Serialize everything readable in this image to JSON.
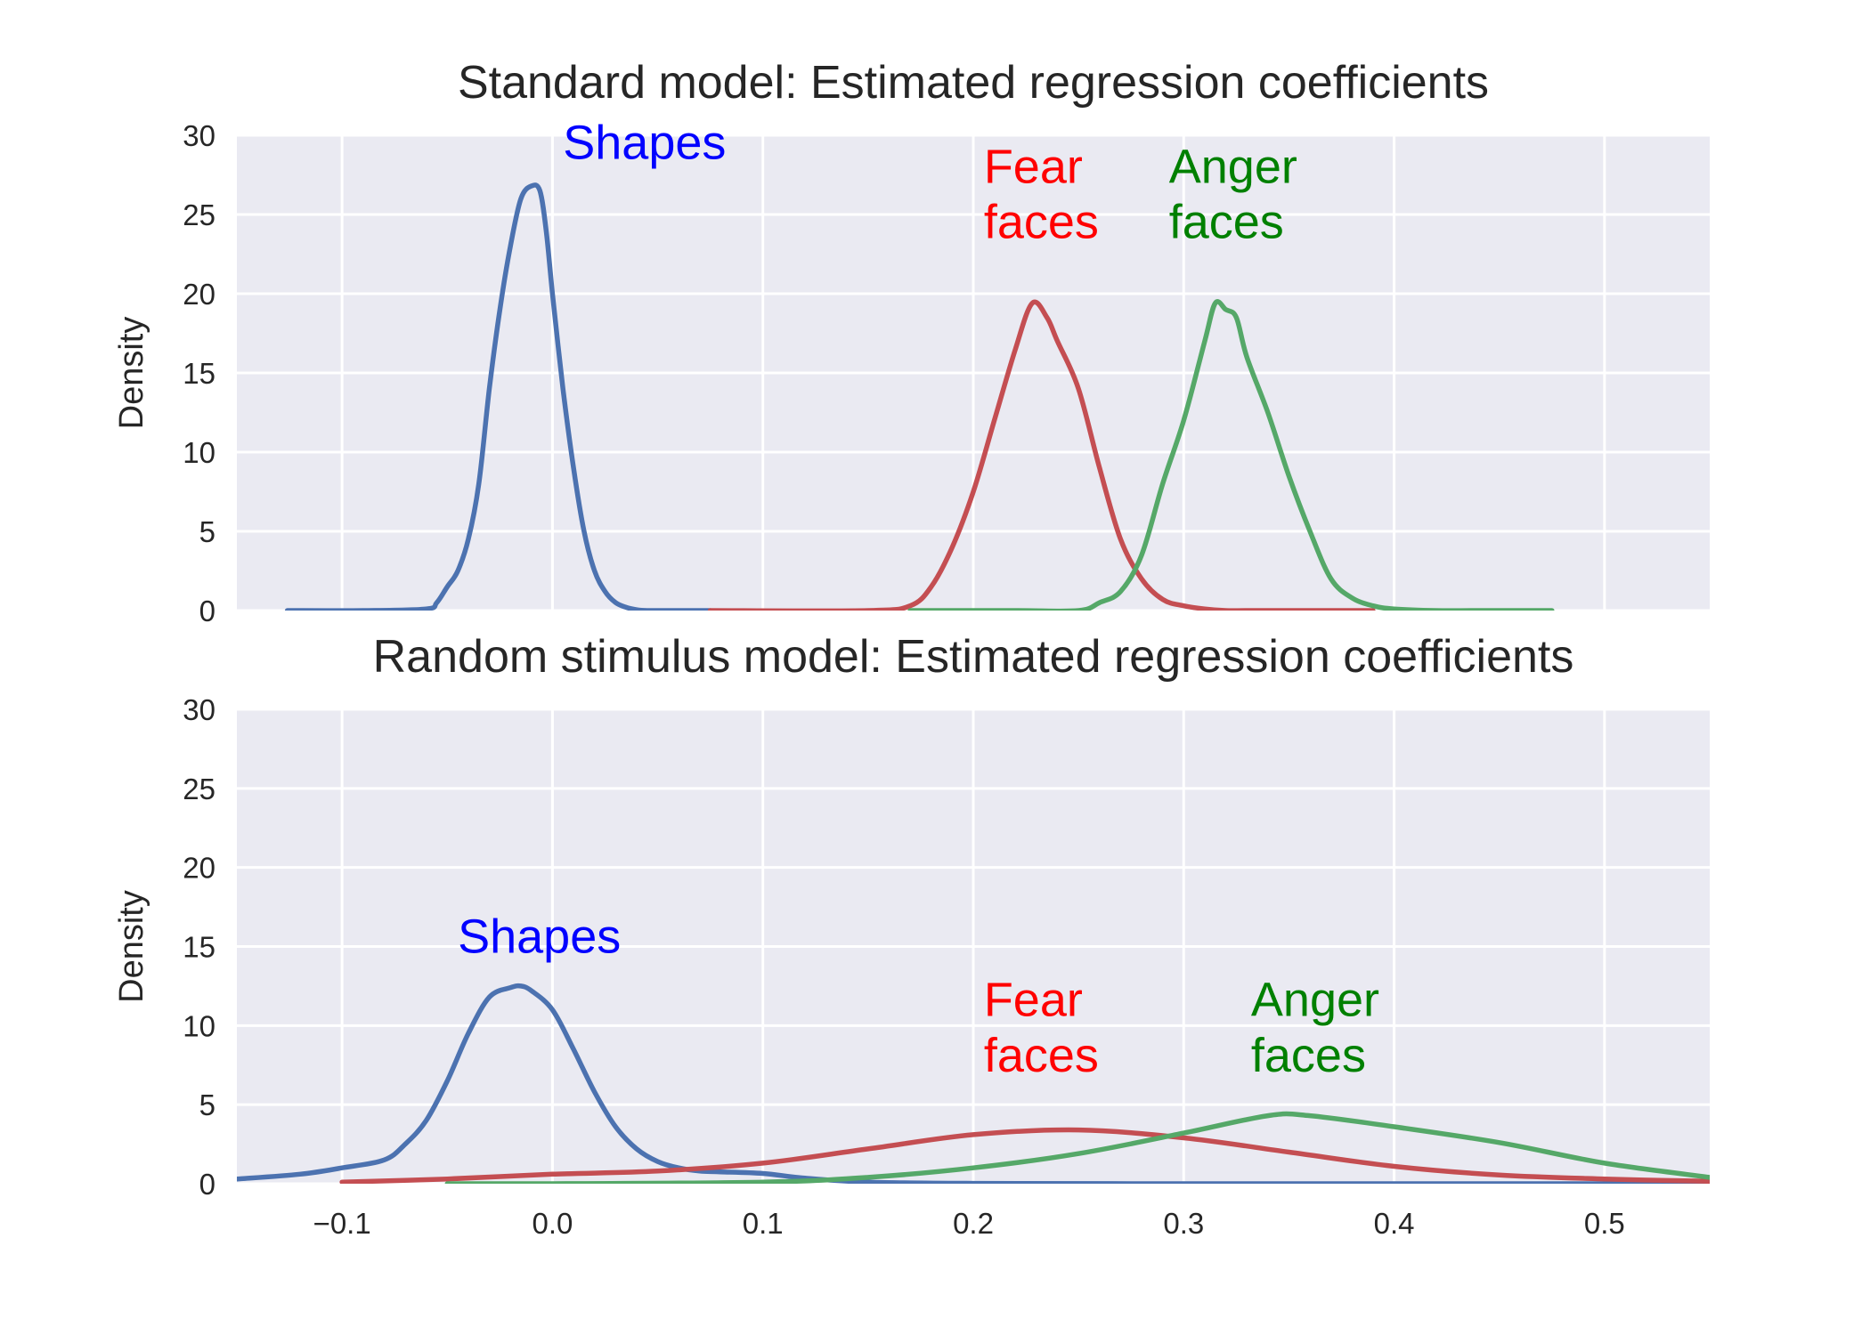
{
  "chart_data": [
    {
      "type": "line",
      "title": "Standard model: Estimated regression coefficients",
      "xlabel": "",
      "ylabel": "Density",
      "xlim": [
        -0.15,
        0.55
      ],
      "ylim": [
        0,
        30
      ],
      "yticks": [
        "0",
        "5",
        "10",
        "15",
        "20",
        "25",
        "30"
      ],
      "grid": true,
      "series": [
        {
          "color": "#4c72b0",
          "x": [
            -0.126,
            -0.09,
            -0.06,
            -0.055,
            -0.05,
            -0.045,
            -0.04,
            -0.035,
            -0.03,
            -0.025,
            -0.02,
            -0.015,
            -0.01,
            -0.006,
            -0.003,
            0.0,
            0.005,
            0.01,
            0.015,
            0.02,
            0.025,
            0.03,
            0.035,
            0.04,
            0.045,
            0.05,
            0.06,
            0.075
          ],
          "y": [
            0,
            0,
            0.1,
            0.5,
            1.5,
            2.5,
            4.5,
            8,
            14,
            19,
            23,
            26,
            26.8,
            26.5,
            24,
            20,
            14,
            9,
            5,
            2.5,
            1.2,
            0.5,
            0.2,
            0.05,
            0,
            0,
            0,
            0
          ]
        },
        {
          "color": "#c44e52",
          "x": [
            0.075,
            0.15,
            0.17,
            0.18,
            0.19,
            0.2,
            0.21,
            0.22,
            0.228,
            0.235,
            0.24,
            0.25,
            0.26,
            0.27,
            0.28,
            0.29,
            0.3,
            0.31,
            0.32,
            0.33,
            0.35,
            0.39
          ],
          "y": [
            0,
            0,
            0.3,
            1.5,
            4,
            7.5,
            12,
            16.5,
            19.4,
            18.5,
            17,
            14,
            9,
            4.5,
            2,
            0.7,
            0.3,
            0.1,
            0,
            0,
            0,
            0
          ]
        },
        {
          "color": "#55a868",
          "x": [
            0.17,
            0.22,
            0.25,
            0.26,
            0.27,
            0.28,
            0.29,
            0.3,
            0.31,
            0.315,
            0.32,
            0.325,
            0.33,
            0.34,
            0.35,
            0.36,
            0.37,
            0.38,
            0.39,
            0.4,
            0.42,
            0.44,
            0.475
          ],
          "y": [
            0,
            0,
            0,
            0.5,
            1.2,
            3.5,
            8,
            12,
            17,
            19.4,
            19,
            18.5,
            16,
            12.5,
            8.5,
            5,
            2,
            0.8,
            0.3,
            0.1,
            0,
            0,
            0
          ]
        }
      ],
      "annotations": [
        {
          "text": "Shapes",
          "x": 0.005,
          "y": 28.5,
          "color": "#0000ff"
        },
        {
          "text": "Fear",
          "x": 0.205,
          "y": 27,
          "color": "#ff0000"
        },
        {
          "text": "faces",
          "x": 0.205,
          "y": 23.5,
          "color": "#ff0000"
        },
        {
          "text": "Anger",
          "x": 0.293,
          "y": 27,
          "color": "#008000"
        },
        {
          "text": "faces",
          "x": 0.293,
          "y": 23.5,
          "color": "#008000"
        }
      ]
    },
    {
      "type": "line",
      "title": "Random stimulus model: Estimated regression coefficients",
      "xlabel": "",
      "ylabel": "Density",
      "xlim": [
        -0.15,
        0.55
      ],
      "ylim": [
        0,
        30
      ],
      "xticks": [
        "−0.1",
        "0.0",
        "0.1",
        "0.2",
        "0.3",
        "0.4",
        "0.5"
      ],
      "yticks": [
        "0",
        "5",
        "10",
        "15",
        "20",
        "25",
        "30"
      ],
      "grid": true,
      "series": [
        {
          "color": "#4c72b0",
          "x": [
            -0.15,
            -0.12,
            -0.1,
            -0.08,
            -0.07,
            -0.06,
            -0.05,
            -0.04,
            -0.03,
            -0.02,
            -0.015,
            -0.01,
            0.0,
            0.01,
            0.02,
            0.03,
            0.04,
            0.05,
            0.06,
            0.07,
            0.08,
            0.1,
            0.12,
            0.15,
            0.2,
            0.3,
            0.4,
            0.55
          ],
          "y": [
            0.3,
            0.6,
            1.0,
            1.5,
            2.5,
            4,
            6.5,
            9.5,
            11.8,
            12.4,
            12.5,
            12.2,
            11,
            8.5,
            5.8,
            3.6,
            2.2,
            1.4,
            1.0,
            0.8,
            0.75,
            0.65,
            0.35,
            0.1,
            0.02,
            0,
            0,
            0
          ]
        },
        {
          "color": "#c44e52",
          "x": [
            -0.1,
            -0.05,
            0.0,
            0.05,
            0.1,
            0.15,
            0.2,
            0.25,
            0.3,
            0.35,
            0.4,
            0.45,
            0.5,
            0.55
          ],
          "y": [
            0.1,
            0.3,
            0.6,
            0.8,
            1.3,
            2.2,
            3.1,
            3.4,
            2.9,
            2.0,
            1.1,
            0.55,
            0.3,
            0.15
          ]
        },
        {
          "color": "#55a868",
          "x": [
            -0.05,
            0.0,
            0.1,
            0.15,
            0.2,
            0.25,
            0.3,
            0.34,
            0.36,
            0.4,
            0.45,
            0.5,
            0.55
          ],
          "y": [
            0,
            0,
            0.1,
            0.4,
            1.0,
            1.9,
            3.2,
            4.3,
            4.3,
            3.6,
            2.6,
            1.3,
            0.4
          ]
        }
      ],
      "annotations": [
        {
          "text": "Shapes",
          "x": -0.045,
          "y": 14.6,
          "color": "#0000ff"
        },
        {
          "text": "Fear",
          "x": 0.205,
          "y": 10.6,
          "color": "#ff0000"
        },
        {
          "text": "faces",
          "x": 0.205,
          "y": 7.1,
          "color": "#ff0000"
        },
        {
          "text": "Anger",
          "x": 0.332,
          "y": 10.6,
          "color": "#008000"
        },
        {
          "text": "faces",
          "x": 0.332,
          "y": 7.1,
          "color": "#008000"
        }
      ]
    }
  ]
}
